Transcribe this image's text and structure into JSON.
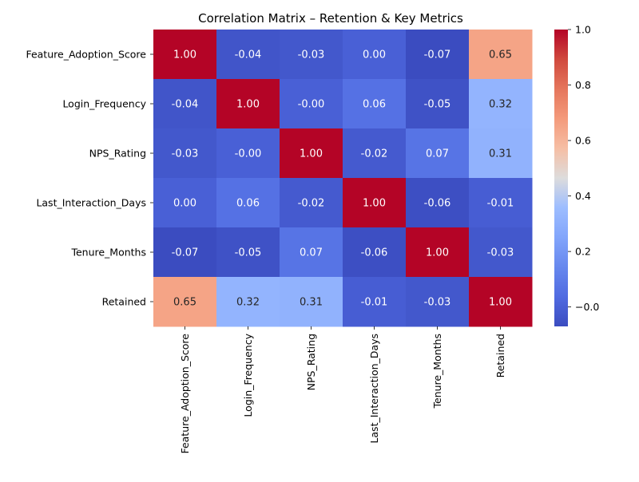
{
  "chart_data": {
    "type": "heatmap",
    "title": "Correlation Matrix – Retention & Key Metrics",
    "xlabel": "",
    "ylabel": "",
    "rows": [
      "Feature_Adoption_Score",
      "Login_Frequency",
      "NPS_Rating",
      "Last_Interaction_Days",
      "Tenure_Months",
      "Retained"
    ],
    "columns": [
      "Feature_Adoption_Score",
      "Login_Frequency",
      "NPS_Rating",
      "Last_Interaction_Days",
      "Tenure_Months",
      "Retained"
    ],
    "values": [
      [
        1.0,
        -0.04,
        -0.03,
        0.0,
        -0.07,
        0.65
      ],
      [
        -0.04,
        1.0,
        -0.0,
        0.06,
        -0.05,
        0.32
      ],
      [
        -0.03,
        -0.0,
        1.0,
        -0.02,
        0.07,
        0.31
      ],
      [
        0.0,
        0.06,
        -0.02,
        1.0,
        -0.06,
        -0.01
      ],
      [
        -0.07,
        -0.05,
        0.07,
        -0.06,
        1.0,
        -0.03
      ],
      [
        0.65,
        0.32,
        0.31,
        -0.01,
        -0.03,
        1.0
      ]
    ],
    "cell_labels": [
      [
        "1.00",
        "-0.04",
        "-0.03",
        "0.00",
        "-0.07",
        "0.65"
      ],
      [
        "-0.04",
        "1.00",
        "-0.00",
        "0.06",
        "-0.05",
        "0.32"
      ],
      [
        "-0.03",
        "-0.00",
        "1.00",
        "-0.02",
        "0.07",
        "0.31"
      ],
      [
        "0.00",
        "0.06",
        "-0.02",
        "1.00",
        "-0.06",
        "-0.01"
      ],
      [
        "-0.07",
        "-0.05",
        "0.07",
        "-0.06",
        "1.00",
        "-0.03"
      ],
      [
        "0.65",
        "0.32",
        "0.31",
        "-0.01",
        "-0.03",
        "1.00"
      ]
    ],
    "colorbar": {
      "colormap": "coolwarm",
      "vmin": -0.07,
      "vmax": 1.0,
      "ticks": [
        1.0,
        0.8,
        0.6,
        0.4,
        0.2,
        -0.0
      ],
      "tick_labels": [
        "1.0",
        "0.8",
        "0.6",
        "0.4",
        "0.2",
        "−0.0"
      ]
    },
    "grid": false,
    "legend": "colorbar-right"
  }
}
